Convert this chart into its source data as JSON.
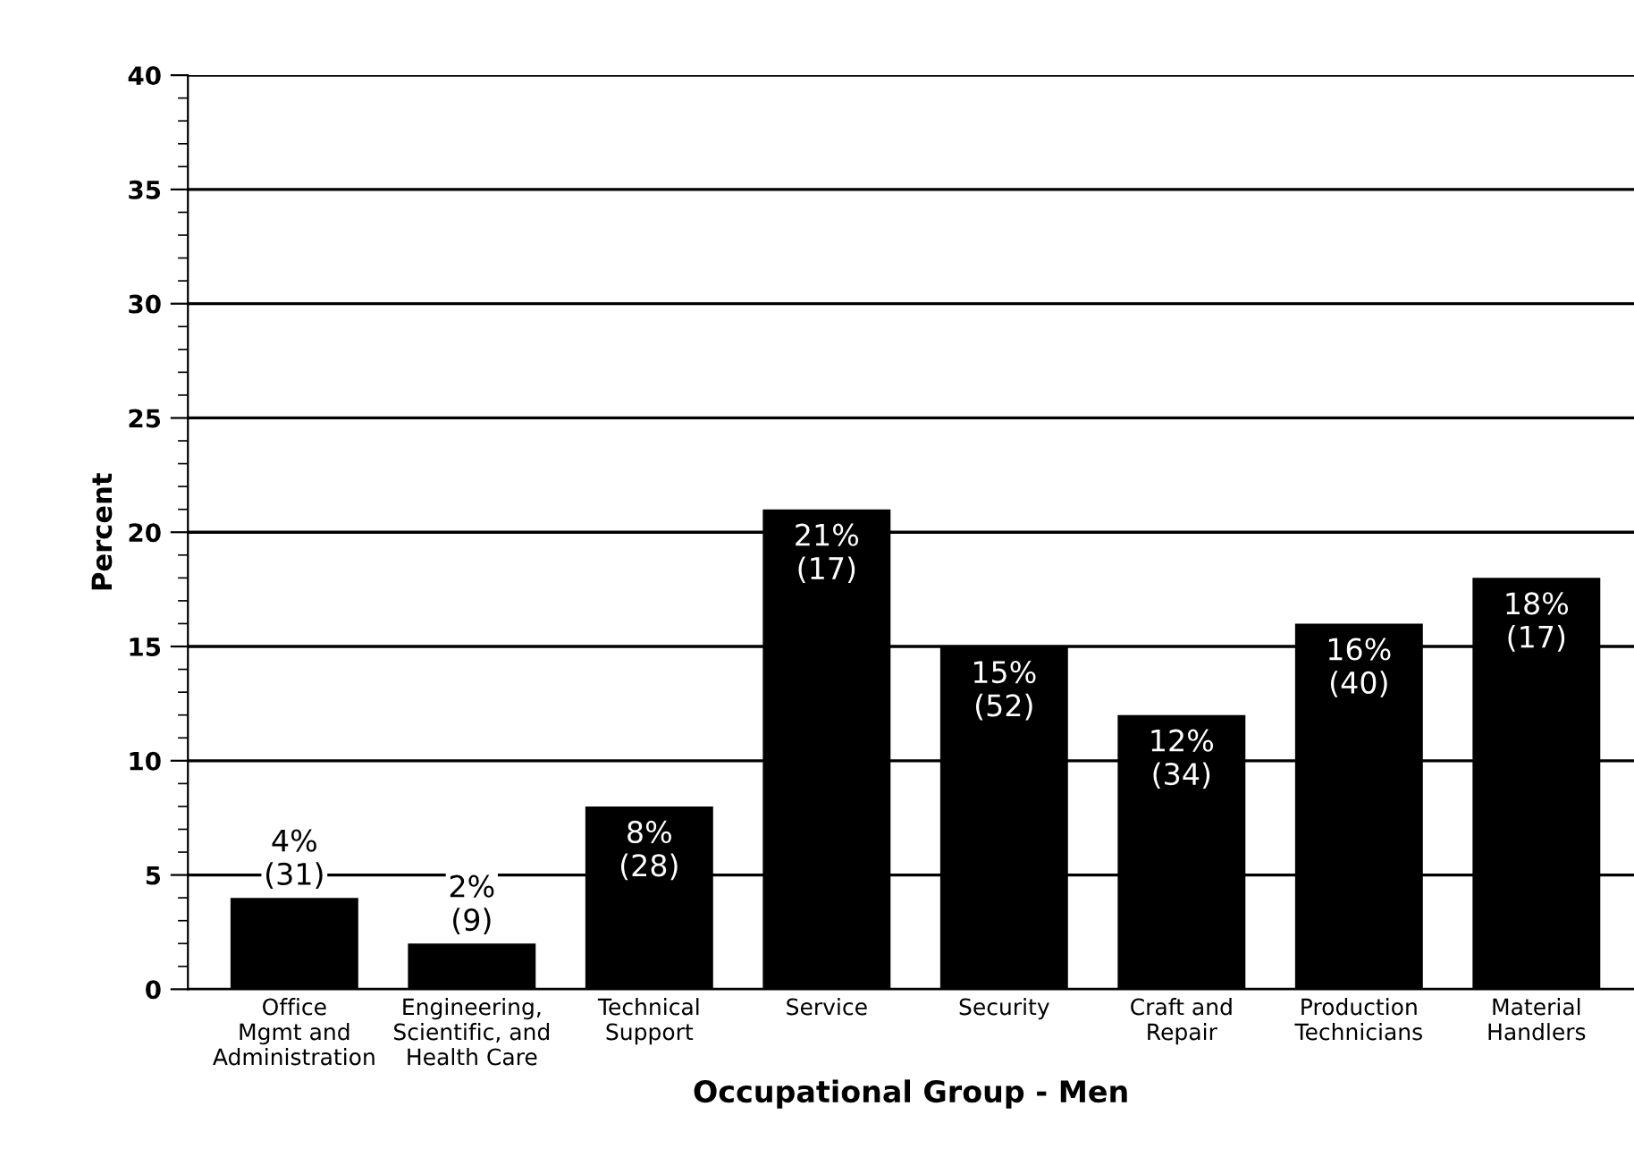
{
  "chart_data": {
    "type": "bar",
    "xlabel": "Occupational Group - Men",
    "ylabel": "Percent",
    "categories": [
      "Office\nMgmt and\nAdministration",
      "Engineering,\nScientific, and\nHealth Care",
      "Technical\nSupport",
      "Service",
      "Security",
      "Craft and\nRepair",
      "Production\nTechnicians",
      "Material\nHandlers"
    ],
    "values": [
      4,
      2,
      8,
      21,
      15,
      12,
      16,
      18
    ],
    "value_labels": [
      "4%\n(31)",
      "2%\n(9)",
      "8%\n(28)",
      "21%\n(17)",
      "15%\n(52)",
      "12%\n(34)",
      "16%\n(40)",
      "18%\n(17)"
    ],
    "color": "#000000",
    "ylim": [
      0,
      40
    ],
    "yticks": [
      0,
      5,
      10,
      15,
      20,
      25,
      30,
      35,
      40
    ],
    "grid": "y"
  }
}
